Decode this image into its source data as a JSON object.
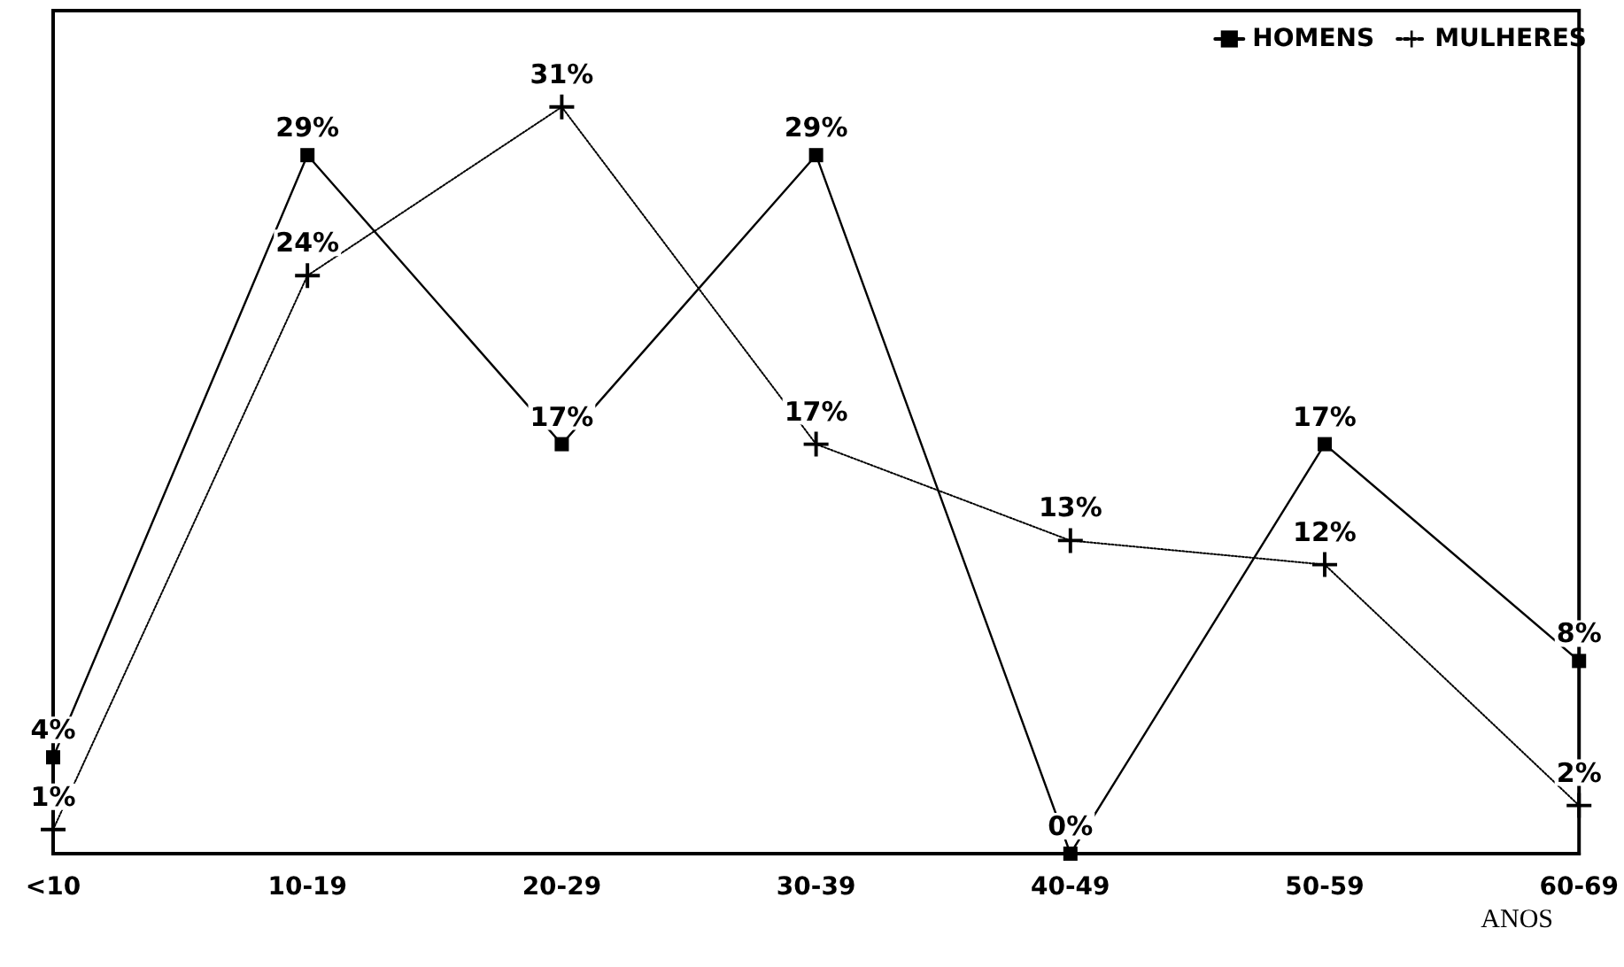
{
  "chart_data": {
    "type": "line",
    "xlabel": "ANOS",
    "categories": [
      "<10",
      "10-19",
      "20-29",
      "30-39",
      "40-49",
      "50-59",
      "60-69"
    ],
    "ylim": [
      0,
      35
    ],
    "tick_labels": "x",
    "grid": false,
    "legend": "top right",
    "series": [
      {
        "name": "HOMENS",
        "color": "#000000",
        "marker": "square",
        "line_style": "solid",
        "values": [
          4,
          29,
          17,
          29,
          0,
          17,
          8
        ],
        "value_labels": [
          "4%",
          "29%",
          "17%",
          "29%",
          "0%",
          "17%",
          "8%"
        ]
      },
      {
        "name": "MULHERES",
        "color": "#000000",
        "marker": "cross",
        "line_style": "dotted",
        "values": [
          1,
          24,
          31,
          17,
          13,
          12,
          2
        ],
        "value_labels": [
          "1%",
          "24%",
          "31%",
          "17%",
          "13%",
          "12%",
          "2%"
        ]
      }
    ]
  }
}
